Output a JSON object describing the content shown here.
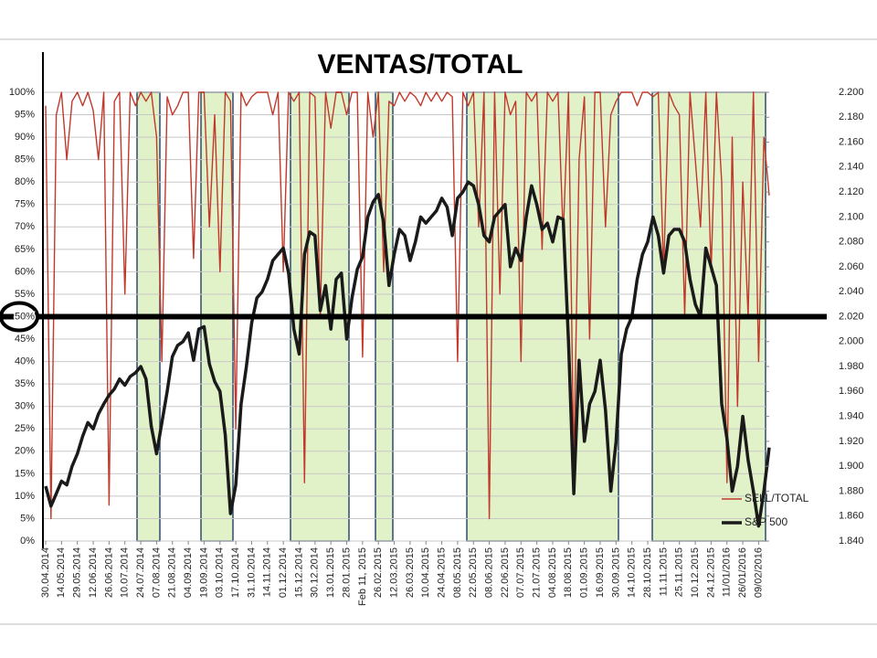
{
  "chart_data": {
    "type": "line",
    "title": "VENTAS/TOTAL",
    "categories": [
      "30.04.2014",
      null,
      null,
      "14.05.2014",
      null,
      null,
      "29.05.2014",
      null,
      null,
      "12.06.2014",
      null,
      null,
      "26.06.2014",
      null,
      null,
      "10.07.2014",
      null,
      null,
      "24.07.2014",
      null,
      null,
      "07.08.2014",
      null,
      null,
      "21.08.2014",
      null,
      null,
      "04.09.2014",
      null,
      null,
      "19.09.2014",
      null,
      null,
      "03.10.2014",
      null,
      null,
      "17.10.2014",
      null,
      null,
      "31.10.2014",
      null,
      null,
      "14.11.2014",
      null,
      null,
      "01.12.2014",
      null,
      null,
      "15.12.2014",
      null,
      null,
      "30.12.2014",
      null,
      null,
      "13.01.2015",
      null,
      null,
      "28.01.2015",
      null,
      null,
      "Feb 11, 2015",
      null,
      null,
      "26.02.2015",
      null,
      null,
      "12.03.2015",
      null,
      null,
      "26.03.2015",
      null,
      null,
      "10.04.2015",
      null,
      null,
      "24.04.2015",
      null,
      null,
      "08.05.2015",
      null,
      null,
      "22.05.2015",
      null,
      null,
      "08.06.2015",
      null,
      null,
      "22.06.2015",
      null,
      null,
      "07.07.2015",
      null,
      null,
      "21.07.2015",
      null,
      null,
      "04.08.2015",
      null,
      null,
      "18.08.2015",
      null,
      null,
      "01.09.2015",
      null,
      null,
      "16.09.2015",
      null,
      null,
      "30.09.2015",
      null,
      null,
      "14.10.2015",
      null,
      null,
      "28.10.2015",
      null,
      null,
      "11.11.2015",
      null,
      null,
      "25.11.2015",
      null,
      null,
      "10.12.2015",
      null,
      null,
      "24.12.2015",
      null,
      null,
      "11/01/2016",
      null,
      null,
      "26/01/2016",
      null,
      null,
      "09/02/2016",
      null,
      null
    ],
    "series": [
      {
        "name": "SELL/TOTAL",
        "color": "#c0392b",
        "values": [
          97,
          5,
          95,
          100,
          85,
          98,
          100,
          97,
          100,
          96,
          85,
          100,
          8,
          98,
          100,
          55,
          100,
          97,
          100,
          98,
          100,
          90,
          40,
          99,
          95,
          97,
          100,
          100,
          63,
          100,
          100,
          70,
          95,
          60,
          100,
          98,
          25,
          100,
          97,
          99,
          100,
          100,
          100,
          95,
          100,
          60,
          100,
          98,
          100,
          13,
          100,
          99,
          50,
          100,
          92,
          100,
          100,
          95,
          100,
          100,
          41,
          100,
          90,
          100,
          60,
          98,
          97,
          100,
          98,
          100,
          99,
          97,
          100,
          98,
          100,
          98,
          100,
          99,
          40,
          100,
          97,
          100,
          70,
          100,
          5,
          100,
          55,
          100,
          95,
          98,
          40,
          100,
          98,
          100,
          65,
          100,
          98,
          100,
          68,
          100,
          16,
          85,
          99,
          45,
          100,
          100,
          70,
          95,
          98,
          100,
          100,
          100,
          97,
          100,
          100,
          99,
          100,
          60,
          100,
          97,
          95,
          50,
          100,
          85,
          70,
          100,
          60,
          100,
          80,
          13,
          90,
          30,
          80,
          50,
          100,
          40,
          90,
          77
        ]
      },
      {
        "name": "S&P 500",
        "color": "#1a1a1a",
        "axis": "y2",
        "values": [
          1884,
          1868,
          1878,
          1888,
          1885,
          1900,
          1910,
          1924,
          1935,
          1930,
          1942,
          1950,
          1957,
          1962,
          1970,
          1965,
          1972,
          1975,
          1980,
          1970,
          1932,
          1910,
          1935,
          1960,
          1988,
          1997,
          2000,
          2007,
          1985,
          2010,
          2012,
          1982,
          1968,
          1960,
          1925,
          1862,
          1885,
          1950,
          1980,
          2015,
          2035,
          2040,
          2050,
          2065,
          2070,
          2075,
          2055,
          2010,
          1990,
          2070,
          2088,
          2085,
          2025,
          2045,
          2010,
          2050,
          2055,
          2002,
          2035,
          2058,
          2068,
          2100,
          2112,
          2118,
          2095,
          2045,
          2070,
          2090,
          2085,
          2065,
          2080,
          2100,
          2095,
          2100,
          2105,
          2115,
          2108,
          2085,
          2115,
          2120,
          2128,
          2125,
          2110,
          2085,
          2080,
          2100,
          2105,
          2110,
          2060,
          2075,
          2065,
          2100,
          2125,
          2110,
          2090,
          2095,
          2080,
          2100,
          2098,
          2000,
          1878,
          1985,
          1920,
          1950,
          1960,
          1985,
          1945,
          1880,
          1920,
          1990,
          2010,
          2020,
          2050,
          2070,
          2080,
          2100,
          2085,
          2055,
          2085,
          2090,
          2090,
          2080,
          2050,
          2030,
          2020,
          2075,
          2060,
          2045,
          1950,
          1922,
          1880,
          1900,
          1940,
          1905,
          1880,
          1852,
          1880,
          1915
        ]
      }
    ],
    "ylim": [
      0,
      100
    ],
    "yticks": [
      {
        "value": 0,
        "label": "0%"
      },
      {
        "value": 5,
        "label": "5%"
      },
      {
        "value": 10,
        "label": "10%"
      },
      {
        "value": 15,
        "label": "15%"
      },
      {
        "value": 20,
        "label": "20%"
      },
      {
        "value": 25,
        "label": "25%"
      },
      {
        "value": 30,
        "label": "30%"
      },
      {
        "value": 35,
        "label": "35%"
      },
      {
        "value": 40,
        "label": "40%"
      },
      {
        "value": 45,
        "label": "45%"
      },
      {
        "value": 50,
        "label": "50%"
      },
      {
        "value": 55,
        "label": "55%"
      },
      {
        "value": 60,
        "label": "60%"
      },
      {
        "value": 65,
        "label": "65%"
      },
      {
        "value": 70,
        "label": "70%"
      },
      {
        "value": 75,
        "label": "75%"
      },
      {
        "value": 80,
        "label": "80%"
      },
      {
        "value": 85,
        "label": "85%"
      },
      {
        "value": 90,
        "label": "90%"
      },
      {
        "value": 95,
        "label": "95%"
      },
      {
        "value": 100,
        "label": "100%"
      }
    ],
    "y2lim": [
      1840,
      2200
    ],
    "y2ticks": [
      {
        "value": 1840,
        "label": "1.840"
      },
      {
        "value": 1860,
        "label": "1.860"
      },
      {
        "value": 1880,
        "label": "1.880"
      },
      {
        "value": 1900,
        "label": "1.900"
      },
      {
        "value": 1920,
        "label": "1.920"
      },
      {
        "value": 1940,
        "label": "1.940"
      },
      {
        "value": 1960,
        "label": "1.960"
      },
      {
        "value": 1980,
        "label": "1.980"
      },
      {
        "value": 2000,
        "label": "2.000"
      },
      {
        "value": 2020,
        "label": "2.020"
      },
      {
        "value": 2040,
        "label": "2.040"
      },
      {
        "value": 2060,
        "label": "2.060"
      },
      {
        "value": 2080,
        "label": "2.080"
      },
      {
        "value": 2100,
        "label": "2.100"
      },
      {
        "value": 2120,
        "label": "2.120"
      },
      {
        "value": 2140,
        "label": "2.140"
      },
      {
        "value": 2160,
        "label": "2.160"
      },
      {
        "value": 2180,
        "label": "2.180"
      },
      {
        "value": 2200,
        "label": "2.200"
      }
    ],
    "grid": true
  }
}
